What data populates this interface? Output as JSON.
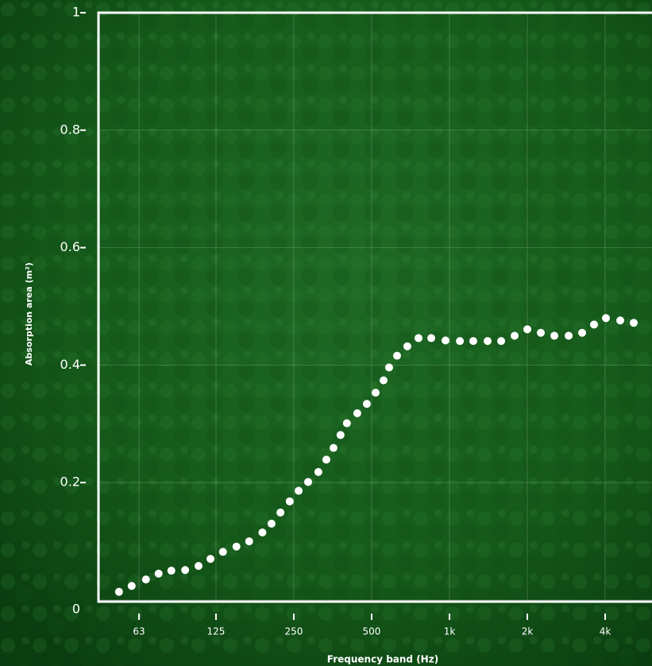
{
  "chart_data": {
    "type": "scatter",
    "xlabel": "Frequency band (Hz)",
    "ylabel": "Absorption area (m²)",
    "x": [
      52.7,
      59,
      67,
      75,
      84,
      95,
      107,
      119,
      133,
      150,
      168,
      189,
      205,
      222,
      241,
      261,
      284,
      311,
      334,
      356,
      379,
      401,
      440,
      479,
      518,
      556,
      584,
      627,
      687,
      759,
      850,
      965,
      1097,
      1236,
      1404,
      1584,
      1786,
      2000,
      2255,
      2544,
      2890,
      3258,
      3622,
      4028,
      4575,
      5159
    ],
    "values": [
      0.014,
      0.024,
      0.035,
      0.045,
      0.05,
      0.051,
      0.058,
      0.07,
      0.082,
      0.091,
      0.1,
      0.115,
      0.13,
      0.149,
      0.168,
      0.186,
      0.201,
      0.218,
      0.239,
      0.259,
      0.281,
      0.301,
      0.318,
      0.334,
      0.353,
      0.374,
      0.396,
      0.416,
      0.432,
      0.446,
      0.446,
      0.442,
      0.441,
      0.441,
      0.441,
      0.441,
      0.45,
      0.461,
      0.455,
      0.45,
      0.45,
      0.455,
      0.469,
      0.48,
      0.476,
      0.472
    ],
    "color": "#ffffff",
    "xscale": "log",
    "xlim": [
      43.9,
      6070
    ],
    "xticks": [
      63,
      125,
      250,
      500,
      {
        "value": 1000,
        "label": "1k"
      },
      {
        "value": 2000,
        "label": "2k"
      },
      {
        "value": 4000,
        "label": "4k"
      }
    ],
    "ylim": [
      0,
      1
    ],
    "yticks": [
      0,
      0.2,
      0.4,
      0.6,
      0.8,
      1
    ],
    "grid": true
  }
}
